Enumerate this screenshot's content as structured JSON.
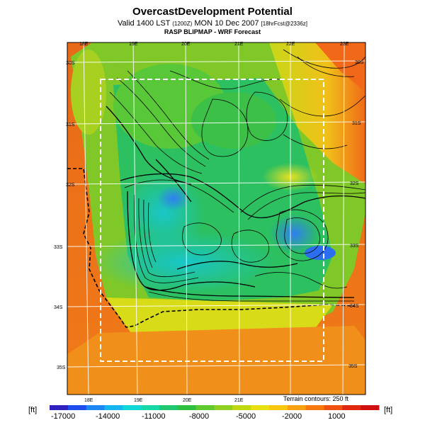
{
  "header": {
    "title": "OvercastDevelopment Potential",
    "subtitle_main": "Valid 1400 LST",
    "subtitle_small": "(1200Z)",
    "subtitle_date": "MON 10 Dec 2007",
    "subtitle_run": "[18hrFcst@2336z]",
    "model": "RASP BLIPMAP - WRF Forecast"
  },
  "map": {
    "lon_labels_top": [
      "18E",
      "19E",
      "20E",
      "21E",
      "22E",
      "23E"
    ],
    "lon_labels_bottom": [
      "18E",
      "19E",
      "20E",
      "21E"
    ],
    "lat_labels_left": [
      "30S",
      "31S",
      "32S",
      "33S",
      "34S",
      "35S"
    ],
    "lat_labels_right": [
      "30S",
      "31S",
      "32S",
      "33S",
      "34S",
      "35S"
    ],
    "terrain_note": "Terrain contours: 250 ft"
  },
  "colorbar": {
    "unit_left": "[ft]",
    "unit_right": "[ft]",
    "tick_labels": [
      "-17000",
      "-14000",
      "-11000",
      "-8000",
      "-5000",
      "-2000",
      "1000"
    ],
    "colors": [
      "#3020c0",
      "#1e4ef0",
      "#1f86f5",
      "#15b6f0",
      "#10d8d8",
      "#18d8a8",
      "#20c870",
      "#30c040",
      "#60c830",
      "#90d020",
      "#c0d810",
      "#e8e010",
      "#f8c810",
      "#f8a010",
      "#f87810",
      "#f05010",
      "#e02810",
      "#d01010"
    ]
  }
}
